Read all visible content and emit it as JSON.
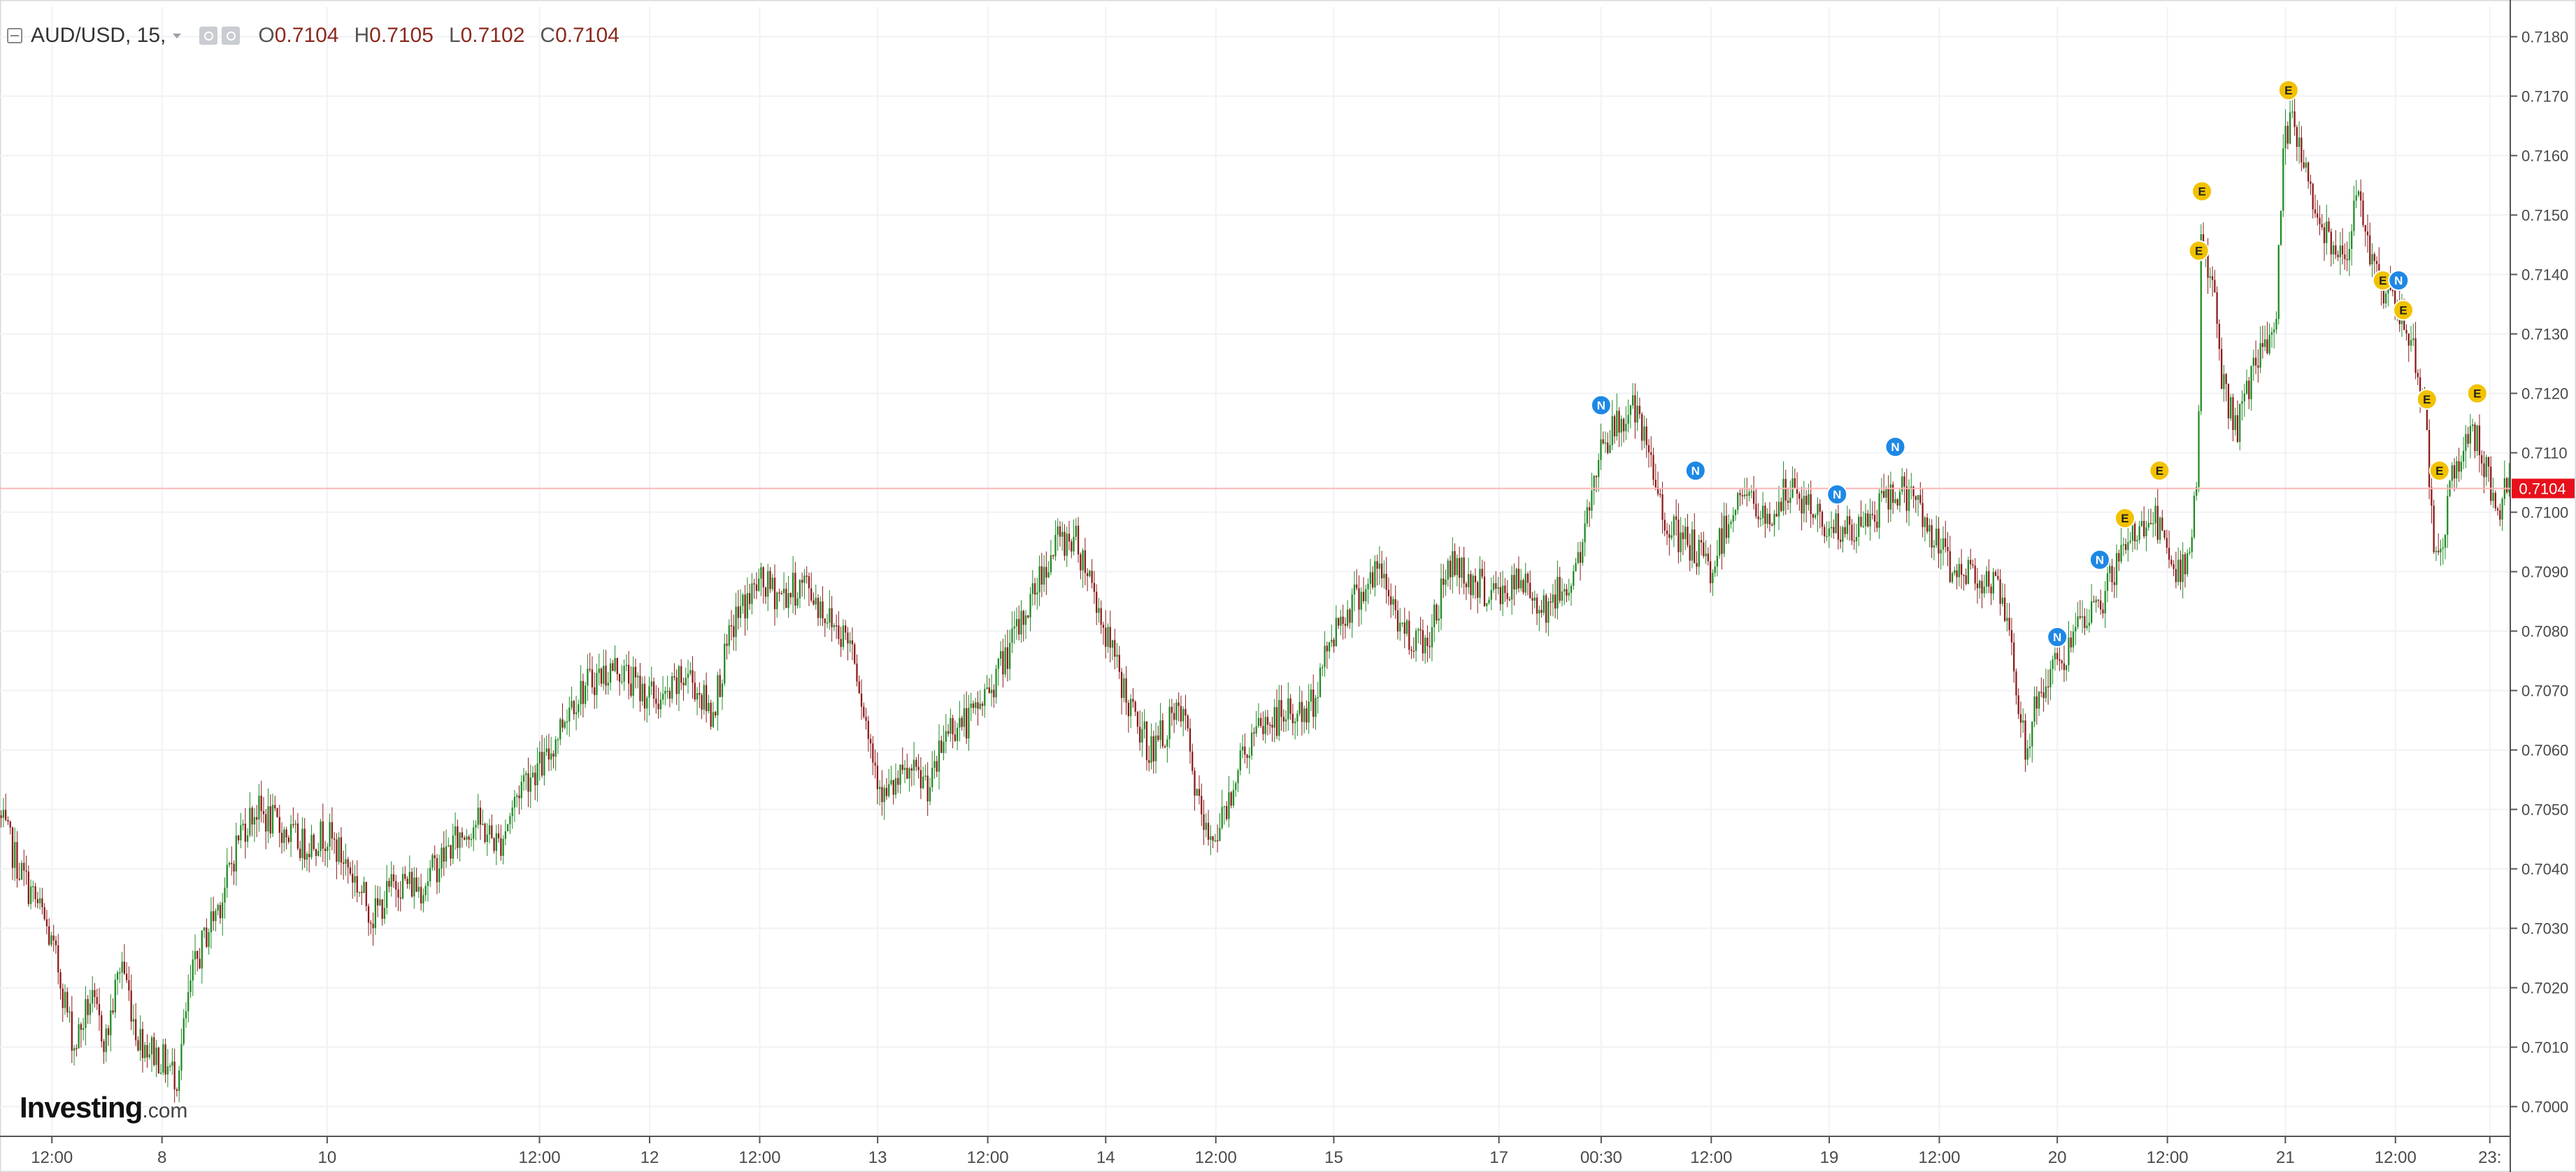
{
  "header": {
    "symbol": "AUD/USD, 15,",
    "open_label": "O",
    "open_value": "0.7104",
    "high_label": "H",
    "high_value": "0.7105",
    "low_label": "L",
    "low_value": "0.7102",
    "close_label": "C",
    "close_value": "0.7104"
  },
  "logo": {
    "main": "Investing",
    "suffix": ".com"
  },
  "colors": {
    "up": "#1f8b24",
    "down": "#8b1a1a",
    "grid": "#f0f2f5",
    "axis_text": "#4a4a4a",
    "price_line": "#ffb3b3",
    "price_tag": "#e8101a",
    "event_e": "#f2c200",
    "event_n": "#1e88e5"
  },
  "chart_data": {
    "type": "candlestick",
    "title": "",
    "xlabel": "",
    "ylabel": "",
    "ylim": [
      0.6995,
      0.7185
    ],
    "grid": true,
    "last_price": 0.7104,
    "last_price_label": "0.7104",
    "y_ticks": [
      "0.7180",
      "0.7170",
      "0.7160",
      "0.7150",
      "0.7140",
      "0.7130",
      "0.7120",
      "0.7110",
      "0.7100",
      "0.7090",
      "0.7080",
      "0.7070",
      "0.7060",
      "0.7050",
      "0.7040",
      "0.7030",
      "0.7020",
      "0.7010",
      "0.7000"
    ],
    "x_ticks": [
      {
        "label": "12:00",
        "pos": 0.0
      },
      {
        "label": "8",
        "pos": 0.7
      },
      {
        "label": "10",
        "pos": 1.75
      },
      {
        "label": "12:00",
        "pos": 3.1
      },
      {
        "label": "12",
        "pos": 3.8
      },
      {
        "label": "12:00",
        "pos": 4.5
      },
      {
        "label": "13",
        "pos": 5.25
      },
      {
        "label": "12:00",
        "pos": 5.95
      },
      {
        "label": "14",
        "pos": 6.7
      },
      {
        "label": "12:00",
        "pos": 7.4
      },
      {
        "label": "15",
        "pos": 8.15
      },
      {
        "label": "17",
        "pos": 9.2
      },
      {
        "label": "00:30",
        "pos": 9.85
      },
      {
        "label": "12:00",
        "pos": 10.55
      },
      {
        "label": "19",
        "pos": 11.3
      },
      {
        "label": "12:00",
        "pos": 12.0
      },
      {
        "label": "20",
        "pos": 12.75
      },
      {
        "label": "12:00",
        "pos": 13.45
      },
      {
        "label": "21",
        "pos": 14.2
      },
      {
        "label": "12:00",
        "pos": 14.9
      },
      {
        "label": "23:",
        "pos": 15.5
      }
    ],
    "x_range": [
      -0.33,
      15.63
    ],
    "price_path": [
      [
        -0.33,
        0.7049
      ],
      [
        -0.2,
        0.704
      ],
      [
        -0.05,
        0.7032
      ],
      [
        0.05,
        0.7023
      ],
      [
        0.15,
        0.701
      ],
      [
        0.25,
        0.7018
      ],
      [
        0.35,
        0.7011
      ],
      [
        0.45,
        0.7025
      ],
      [
        0.55,
        0.7012
      ],
      [
        0.7,
        0.7008
      ],
      [
        0.8,
        0.7005
      ],
      [
        0.9,
        0.7022
      ],
      [
        1.0,
        0.703
      ],
      [
        1.1,
        0.7036
      ],
      [
        1.2,
        0.7046
      ],
      [
        1.3,
        0.705
      ],
      [
        1.45,
        0.7047
      ],
      [
        1.6,
        0.7044
      ],
      [
        1.75,
        0.7046
      ],
      [
        1.9,
        0.704
      ],
      [
        2.05,
        0.7032
      ],
      [
        2.2,
        0.7038
      ],
      [
        2.35,
        0.7037
      ],
      [
        2.55,
        0.7044
      ],
      [
        2.7,
        0.7048
      ],
      [
        2.85,
        0.7044
      ],
      [
        3.0,
        0.7055
      ],
      [
        3.15,
        0.7058
      ],
      [
        3.3,
        0.7068
      ],
      [
        3.45,
        0.7072
      ],
      [
        3.6,
        0.7074
      ],
      [
        3.75,
        0.707
      ],
      [
        3.9,
        0.7068
      ],
      [
        4.05,
        0.7073
      ],
      [
        4.2,
        0.7066
      ],
      [
        4.35,
        0.7082
      ],
      [
        4.5,
        0.7088
      ],
      [
        4.65,
        0.7086
      ],
      [
        4.8,
        0.7088
      ],
      [
        4.95,
        0.7082
      ],
      [
        5.1,
        0.7078
      ],
      [
        5.2,
        0.7062
      ],
      [
        5.3,
        0.7052
      ],
      [
        5.45,
        0.7056
      ],
      [
        5.6,
        0.7054
      ],
      [
        5.7,
        0.7064
      ],
      [
        5.85,
        0.7065
      ],
      [
        6.0,
        0.7072
      ],
      [
        6.15,
        0.708
      ],
      [
        6.3,
        0.709
      ],
      [
        6.4,
        0.7095
      ],
      [
        6.5,
        0.7096
      ],
      [
        6.6,
        0.709
      ],
      [
        6.7,
        0.708
      ],
      [
        6.8,
        0.7072
      ],
      [
        6.9,
        0.7064
      ],
      [
        7.0,
        0.706
      ],
      [
        7.1,
        0.7064
      ],
      [
        7.2,
        0.7066
      ],
      [
        7.3,
        0.705
      ],
      [
        7.35,
        0.7045
      ],
      [
        7.45,
        0.7048
      ],
      [
        7.55,
        0.7058
      ],
      [
        7.7,
        0.7064
      ],
      [
        7.85,
        0.7066
      ],
      [
        8.0,
        0.7066
      ],
      [
        8.15,
        0.708
      ],
      [
        8.3,
        0.7086
      ],
      [
        8.45,
        0.709
      ],
      [
        8.6,
        0.708
      ],
      [
        8.75,
        0.7078
      ],
      [
        8.9,
        0.7092
      ],
      [
        9.05,
        0.7088
      ],
      [
        9.2,
        0.7086
      ],
      [
        9.35,
        0.7088
      ],
      [
        9.5,
        0.7084
      ],
      [
        9.65,
        0.7088
      ],
      [
        9.75,
        0.7095
      ],
      [
        9.85,
        0.7112
      ],
      [
        9.95,
        0.7114
      ],
      [
        10.05,
        0.7118
      ],
      [
        10.15,
        0.711
      ],
      [
        10.25,
        0.71
      ],
      [
        10.35,
        0.7095
      ],
      [
        10.45,
        0.7094
      ],
      [
        10.55,
        0.709
      ],
      [
        10.65,
        0.7098
      ],
      [
        10.75,
        0.7104
      ],
      [
        10.9,
        0.7098
      ],
      [
        11.05,
        0.7104
      ],
      [
        11.2,
        0.71
      ],
      [
        11.3,
        0.7098
      ],
      [
        11.45,
        0.7096
      ],
      [
        11.6,
        0.71
      ],
      [
        11.75,
        0.7104
      ],
      [
        11.9,
        0.71
      ],
      [
        12.0,
        0.7094
      ],
      [
        12.1,
        0.709
      ],
      [
        12.25,
        0.709
      ],
      [
        12.4,
        0.7086
      ],
      [
        12.5,
        0.707
      ],
      [
        12.55,
        0.706
      ],
      [
        12.65,
        0.707
      ],
      [
        12.75,
        0.7074
      ],
      [
        12.9,
        0.708
      ],
      [
        13.05,
        0.7086
      ],
      [
        13.15,
        0.7092
      ],
      [
        13.25,
        0.7096
      ],
      [
        13.35,
        0.71
      ],
      [
        13.45,
        0.7094
      ],
      [
        13.5,
        0.7088
      ],
      [
        13.55,
        0.709
      ],
      [
        13.6,
        0.7096
      ],
      [
        13.65,
        0.7106
      ],
      [
        13.67,
        0.7145
      ],
      [
        13.75,
        0.7138
      ],
      [
        13.8,
        0.7122
      ],
      [
        13.9,
        0.7114
      ],
      [
        14.0,
        0.7124
      ],
      [
        14.1,
        0.7128
      ],
      [
        14.15,
        0.7134
      ],
      [
        14.2,
        0.7162
      ],
      [
        14.25,
        0.7166
      ],
      [
        14.3,
        0.7162
      ],
      [
        14.4,
        0.715
      ],
      [
        14.5,
        0.7146
      ],
      [
        14.6,
        0.7144
      ],
      [
        14.65,
        0.7154
      ],
      [
        14.7,
        0.7148
      ],
      [
        14.8,
        0.714
      ],
      [
        14.9,
        0.7134
      ],
      [
        15.0,
        0.713
      ],
      [
        15.05,
        0.7124
      ],
      [
        15.1,
        0.7114
      ],
      [
        15.15,
        0.7096
      ],
      [
        15.2,
        0.7094
      ],
      [
        15.25,
        0.7104
      ],
      [
        15.3,
        0.7108
      ],
      [
        15.4,
        0.7114
      ],
      [
        15.45,
        0.711
      ],
      [
        15.5,
        0.7106
      ],
      [
        15.55,
        0.71
      ],
      [
        15.6,
        0.7104
      ],
      [
        15.63,
        0.7104
      ]
    ],
    "events": [
      {
        "type": "N",
        "x": 9.85,
        "y": 0.7118
      },
      {
        "type": "N",
        "x": 10.45,
        "y": 0.7107
      },
      {
        "type": "N",
        "x": 11.35,
        "y": 0.7103
      },
      {
        "type": "N",
        "x": 11.72,
        "y": 0.7111
      },
      {
        "type": "N",
        "x": 12.75,
        "y": 0.7079
      },
      {
        "type": "N",
        "x": 13.02,
        "y": 0.7092
      },
      {
        "type": "E",
        "x": 13.18,
        "y": 0.7099
      },
      {
        "type": "E",
        "x": 13.4,
        "y": 0.7107
      },
      {
        "type": "E",
        "x": 13.65,
        "y": 0.7144
      },
      {
        "type": "E",
        "x": 13.67,
        "y": 0.7154
      },
      {
        "type": "E",
        "x": 14.22,
        "y": 0.7171
      },
      {
        "type": "E",
        "x": 14.82,
        "y": 0.7139
      },
      {
        "type": "N",
        "x": 14.92,
        "y": 0.7139
      },
      {
        "type": "E",
        "x": 14.95,
        "y": 0.7134
      },
      {
        "type": "E",
        "x": 15.1,
        "y": 0.7119
      },
      {
        "type": "E",
        "x": 15.18,
        "y": 0.7107
      },
      {
        "type": "E",
        "x": 15.42,
        "y": 0.712
      }
    ]
  }
}
